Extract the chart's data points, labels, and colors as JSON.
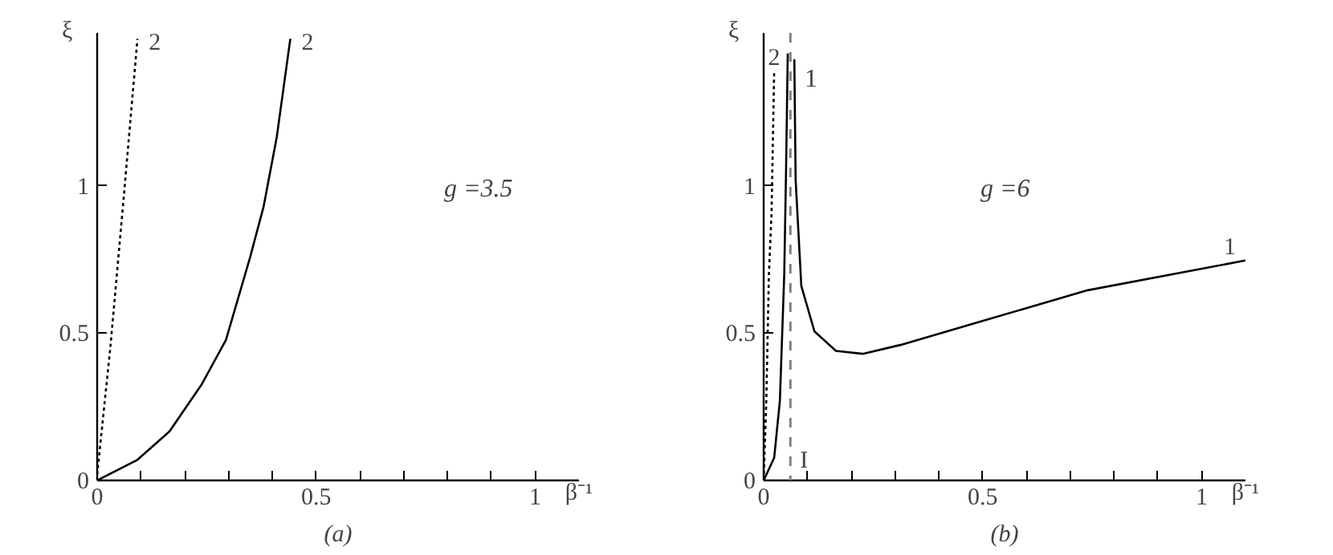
{
  "chart_data": [
    {
      "type": "line",
      "title": "(a)",
      "xlabel": "β⁻¹",
      "ylabel": "ξ",
      "xlim": [
        0,
        1.1
      ],
      "ylim": [
        0,
        1.52
      ],
      "xticks": [
        0,
        {
          "value": 0.1,
          "label": null
        },
        {
          "value": 0.2,
          "label": null
        },
        {
          "value": 0.3,
          "label": null
        },
        {
          "value": 0.4,
          "label": null
        },
        0.5,
        {
          "value": 0.6,
          "label": null
        },
        {
          "value": 0.7,
          "label": null
        },
        {
          "value": 0.8,
          "label": null
        },
        {
          "value": 0.9,
          "label": null
        },
        1
      ],
      "yticks": [
        0,
        0.5,
        1
      ],
      "grid": false,
      "legend": false,
      "series": [
        {
          "name": "2",
          "color": "#000000",
          "line_style": "dotted",
          "x": [
            0,
            0.03,
            0.06,
            0.092
          ],
          "values": [
            0.02,
            0.45,
            0.95,
            1.5
          ]
        },
        {
          "name": "2",
          "color": "#000000",
          "line_style": "solid",
          "x": [
            0,
            0.092,
            0.165,
            0.239,
            0.294,
            0.349,
            0.38,
            0.41,
            0.441
          ],
          "values": [
            0,
            0.07,
            0.166,
            0.327,
            0.477,
            0.757,
            0.93,
            1.166,
            1.5
          ]
        }
      ],
      "annotations": [
        "g =3.5"
      ]
    },
    {
      "type": "line",
      "title": "(b)",
      "xlabel": "β⁻¹",
      "ylabel": "ξ",
      "xlim": [
        0,
        1.1
      ],
      "ylim": [
        0,
        1.52
      ],
      "xticks": [
        0,
        {
          "value": 0.1,
          "label": null
        },
        {
          "value": 0.2,
          "label": null
        },
        {
          "value": 0.3,
          "label": null
        },
        {
          "value": 0.4,
          "label": null
        },
        0.5,
        {
          "value": 0.6,
          "label": null
        },
        {
          "value": 0.7,
          "label": null
        },
        {
          "value": 0.8,
          "label": null
        },
        {
          "value": 0.9,
          "label": null
        },
        1
      ],
      "yticks": [
        0,
        0.5,
        1
      ],
      "grid": false,
      "legend": false,
      "series": [
        {
          "name": "2",
          "color": "#000000",
          "line_style": "dotted",
          "x": [
            0,
            0.006,
            0.012,
            0.018,
            0.024
          ],
          "values": [
            0,
            0.27,
            0.7,
            0.91,
            1.39
          ]
        },
        {
          "name": "1",
          "color": "#000000",
          "line_style": "solid",
          "x": [
            0,
            0.024,
            0.037,
            0.047,
            0.051,
            0.055,
            0.062,
            0.07,
            0.073,
            0.086,
            0.116,
            0.165,
            0.226,
            0.312,
            0.496,
            0.74,
            1.1
          ],
          "values": [
            0,
            0.077,
            0.27,
            0.7,
            1.04,
            1.45,
            null,
            1.43,
            1.02,
            0.66,
            0.506,
            0.44,
            0.43,
            0.46,
            0.54,
            0.646,
            0.747
          ]
        }
      ],
      "ref_lines": [
        {
          "axis": "x",
          "value": 0.061,
          "label": "I",
          "color": "#808080",
          "line_style": "dashed"
        }
      ],
      "annotations": [
        "1",
        "g =6"
      ]
    }
  ]
}
